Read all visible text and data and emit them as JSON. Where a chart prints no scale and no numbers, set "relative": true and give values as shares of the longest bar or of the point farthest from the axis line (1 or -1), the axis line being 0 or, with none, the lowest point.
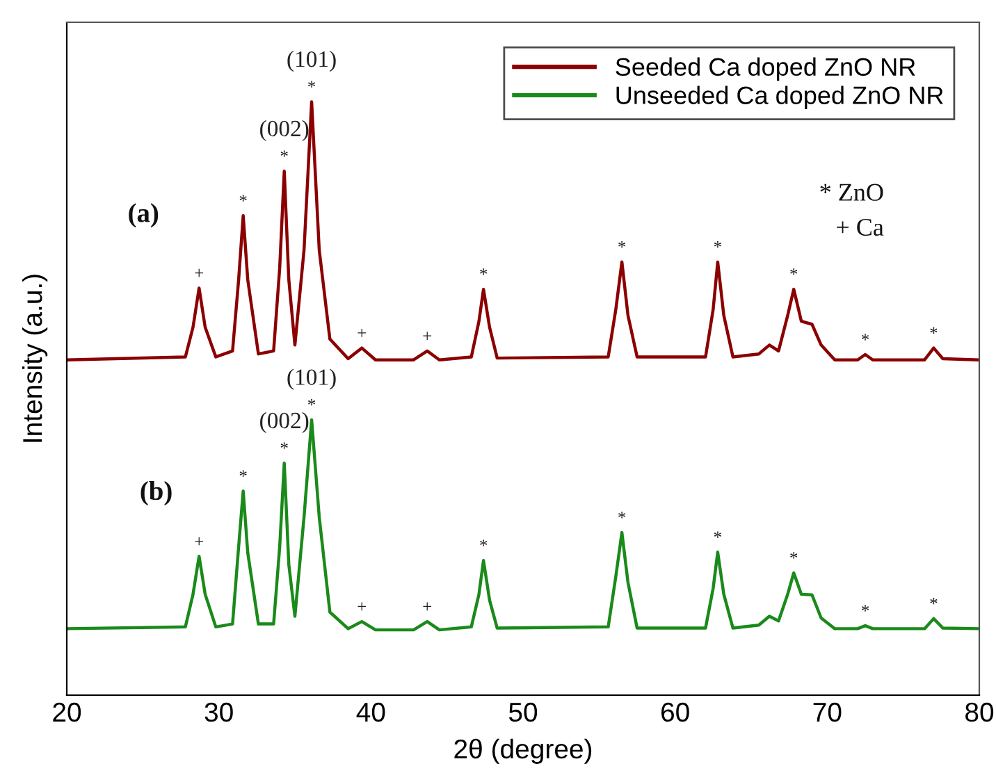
{
  "chart_data": {
    "type": "line",
    "relative": true,
    "xlabel": "2θ (degree)",
    "ylabel": "Intensity (a.u.)",
    "x": [
      20,
      27.8,
      28.3,
      28.7,
      29.1,
      29.8,
      30.9,
      31.3,
      31.6,
      31.9,
      32.6,
      33.6,
      34.0,
      34.3,
      34.6,
      35.0,
      35.6,
      36.1,
      36.6,
      37.3,
      38.5,
      39.4,
      40.3,
      42.8,
      43.7,
      44.5,
      46.6,
      47.1,
      47.4,
      47.8,
      48.3,
      55.6,
      56.1,
      56.5,
      56.9,
      57.5,
      62.0,
      62.5,
      62.8,
      63.2,
      63.8,
      65.5,
      66.2,
      66.8,
      67.4,
      67.8,
      68.3,
      69.0,
      69.6,
      70.5,
      72.0,
      72.5,
      73.0,
      76.4,
      77.0,
      77.6,
      80
    ],
    "xlim": [
      20,
      80
    ],
    "xticks": [
      20,
      30,
      40,
      50,
      60,
      70,
      80
    ],
    "tick_labels": "x",
    "grid": false,
    "legend": "top right",
    "marker": "none",
    "line_style": "solid",
    "series": [
      {
        "name": "Seeded Ca doped ZnO NR",
        "color": "#8b0000",
        "values": [
          0.565,
          0.57,
          0.62,
          0.686,
          0.62,
          0.57,
          0.58,
          0.7,
          0.808,
          0.7,
          0.575,
          0.58,
          0.72,
          0.883,
          0.7,
          0.59,
          0.75,
          1.0,
          0.75,
          0.6,
          0.567,
          0.585,
          0.565,
          0.565,
          0.58,
          0.565,
          0.57,
          0.63,
          0.684,
          0.62,
          0.568,
          0.57,
          0.65,
          0.73,
          0.64,
          0.57,
          0.57,
          0.65,
          0.73,
          0.64,
          0.57,
          0.575,
          0.59,
          0.58,
          0.64,
          0.684,
          0.63,
          0.625,
          0.59,
          0.565,
          0.565,
          0.574,
          0.565,
          0.565,
          0.585,
          0.567,
          0.565
        ]
      },
      {
        "name": "Unseeded Ca doped ZnO NR",
        "color": "#1a8a1a",
        "values": [
          0.112,
          0.115,
          0.17,
          0.234,
          0.17,
          0.115,
          0.12,
          0.25,
          0.344,
          0.24,
          0.12,
          0.12,
          0.25,
          0.391,
          0.22,
          0.133,
          0.3,
          0.464,
          0.3,
          0.14,
          0.112,
          0.124,
          0.11,
          0.11,
          0.124,
          0.11,
          0.115,
          0.17,
          0.227,
          0.16,
          0.113,
          0.115,
          0.2,
          0.274,
          0.19,
          0.113,
          0.113,
          0.18,
          0.241,
          0.17,
          0.113,
          0.118,
          0.133,
          0.125,
          0.17,
          0.206,
          0.17,
          0.169,
          0.13,
          0.112,
          0.112,
          0.117,
          0.112,
          0.112,
          0.129,
          0.113,
          0.112
        ]
      }
    ],
    "annotations": [
      {
        "text": "+",
        "x": 28.7,
        "y": 0.686
      },
      {
        "text": "*",
        "x": 31.6,
        "y": 0.808
      },
      {
        "text": "*",
        "x": 34.3,
        "y": 0.883
      },
      {
        "text": "(002)",
        "x": 34.3,
        "y": 0.883
      },
      {
        "text": "*",
        "x": 36.1,
        "y": 1.0
      },
      {
        "text": "(101)",
        "x": 36.1,
        "y": 1.0
      },
      {
        "text": "+",
        "x": 39.4,
        "y": 0.585
      },
      {
        "text": "+",
        "x": 43.7,
        "y": 0.58
      },
      {
        "text": "*",
        "x": 47.4,
        "y": 0.684
      },
      {
        "text": "*",
        "x": 56.5,
        "y": 0.73
      },
      {
        "text": "*",
        "x": 62.8,
        "y": 0.73
      },
      {
        "text": "*",
        "x": 67.8,
        "y": 0.684
      },
      {
        "text": "*",
        "x": 72.5,
        "y": 0.574
      },
      {
        "text": "*",
        "x": 77.0,
        "y": 0.585
      },
      {
        "text": "+",
        "x": 28.7,
        "y": 0.234
      },
      {
        "text": "*",
        "x": 31.6,
        "y": 0.344
      },
      {
        "text": "*",
        "x": 34.3,
        "y": 0.391
      },
      {
        "text": "(002)",
        "x": 34.3,
        "y": 0.391
      },
      {
        "text": "*",
        "x": 36.1,
        "y": 0.464
      },
      {
        "text": "(101)",
        "x": 36.1,
        "y": 0.464
      },
      {
        "text": "+",
        "x": 39.4,
        "y": 0.124
      },
      {
        "text": "+",
        "x": 43.7,
        "y": 0.124
      },
      {
        "text": "*",
        "x": 47.4,
        "y": 0.227
      },
      {
        "text": "*",
        "x": 56.5,
        "y": 0.274
      },
      {
        "text": "*",
        "x": 62.8,
        "y": 0.241
      },
      {
        "text": "*",
        "x": 67.8,
        "y": 0.206
      },
      {
        "text": "*",
        "x": 72.5,
        "y": 0.117
      },
      {
        "text": "*",
        "x": 77.0,
        "y": 0.129
      },
      "(a)",
      "(b)",
      "* ZnO",
      "+ Ca"
    ]
  }
}
